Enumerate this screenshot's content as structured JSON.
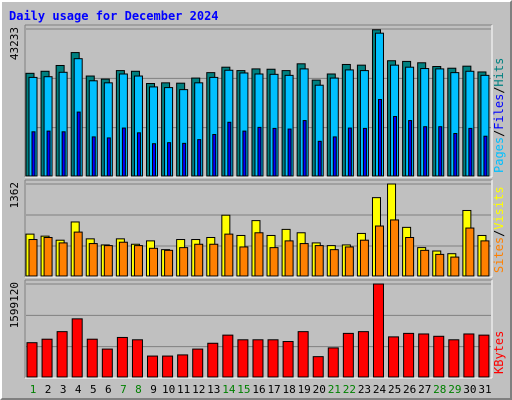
{
  "chart_data": [
    {
      "type": "bar",
      "title": "Daily usage for December 2024",
      "ymax_label": "43233",
      "legend": [
        {
          "name": "Pages",
          "color": "#00c0ff"
        },
        {
          "name": "Files",
          "color": "#0000ff"
        },
        {
          "name": "Hits",
          "color": "#008080"
        }
      ],
      "legend_separator": "/",
      "categories": [
        "1",
        "2",
        "3",
        "4",
        "5",
        "6",
        "7",
        "8",
        "9",
        "10",
        "11",
        "12",
        "13",
        "14",
        "15",
        "16",
        "17",
        "18",
        "19",
        "20",
        "21",
        "22",
        "23",
        "24",
        "25",
        "26",
        "27",
        "28",
        "29",
        "30",
        "31"
      ],
      "weekend_days": [
        1,
        7,
        8,
        14,
        15,
        21,
        22,
        28,
        29
      ],
      "ylim": [
        0,
        43233
      ],
      "series": [
        {
          "name": "Hits",
          "values": [
            30200,
            30800,
            32500,
            36300,
            29400,
            28500,
            31000,
            30800,
            27200,
            27400,
            27300,
            28800,
            30400,
            32000,
            31000,
            31500,
            31400,
            31000,
            33000,
            28200,
            30000,
            32800,
            32600,
            43000,
            33900,
            33700,
            33300,
            32200,
            31700,
            32300,
            30600
          ]
        },
        {
          "name": "Pages",
          "values": [
            29000,
            29200,
            30500,
            34500,
            28000,
            27400,
            30000,
            29400,
            26200,
            26000,
            25400,
            27400,
            29000,
            31100,
            30300,
            30000,
            29900,
            29600,
            31500,
            26700,
            28800,
            31200,
            31000,
            42000,
            32600,
            32000,
            31600,
            31500,
            30400,
            30800,
            29600
          ]
        },
        {
          "name": "Files",
          "values": [
            13000,
            13200,
            13000,
            18800,
            11500,
            11200,
            14100,
            12700,
            9500,
            9800,
            9600,
            10700,
            12200,
            15800,
            13200,
            14300,
            14000,
            13800,
            16300,
            10200,
            11500,
            14100,
            14000,
            22500,
            17500,
            16300,
            14500,
            14500,
            12500,
            14000,
            11700
          ]
        }
      ]
    },
    {
      "type": "bar",
      "ymax_label": "1362",
      "legend": [
        {
          "name": "Sites",
          "color": "#ff8000"
        },
        {
          "name": "Visits",
          "color": "#ffff00"
        }
      ],
      "legend_separator": "/",
      "categories": [
        "1",
        "2",
        "3",
        "4",
        "5",
        "6",
        "7",
        "8",
        "9",
        "10",
        "11",
        "12",
        "13",
        "14",
        "15",
        "16",
        "17",
        "18",
        "19",
        "20",
        "21",
        "22",
        "23",
        "24",
        "25",
        "26",
        "27",
        "28",
        "29",
        "30",
        "31"
      ],
      "ylim": [
        0,
        1362
      ],
      "series": [
        {
          "name": "Visits",
          "values": [
            620,
            590,
            530,
            800,
            550,
            460,
            550,
            470,
            520,
            390,
            540,
            540,
            570,
            900,
            600,
            820,
            600,
            690,
            640,
            490,
            450,
            460,
            630,
            1160,
            1362,
            720,
            420,
            370,
            330,
            970,
            600
          ]
        },
        {
          "name": "Sites",
          "values": [
            540,
            570,
            490,
            650,
            480,
            450,
            500,
            450,
            410,
            380,
            420,
            470,
            470,
            620,
            430,
            640,
            420,
            520,
            480,
            450,
            390,
            430,
            530,
            740,
            830,
            570,
            380,
            320,
            280,
            710,
            520
          ]
        }
      ]
    },
    {
      "type": "bar",
      "ymax_label": "1599120",
      "legend": [
        {
          "name": "KBytes",
          "color": "#ff0000"
        }
      ],
      "categories": [
        "1",
        "2",
        "3",
        "4",
        "5",
        "6",
        "7",
        "8",
        "9",
        "10",
        "11",
        "12",
        "13",
        "14",
        "15",
        "16",
        "17",
        "18",
        "19",
        "20",
        "21",
        "22",
        "23",
        "24",
        "25",
        "26",
        "27",
        "28",
        "29",
        "30",
        "31"
      ],
      "ylim": [
        0,
        1599120
      ],
      "series": [
        {
          "name": "KBytes",
          "values": [
            590000,
            650000,
            780000,
            1000000,
            650000,
            480000,
            680000,
            640000,
            360000,
            360000,
            380000,
            480000,
            580000,
            720000,
            640000,
            640000,
            640000,
            610000,
            780000,
            350000,
            500000,
            750000,
            780000,
            1599120,
            690000,
            750000,
            740000,
            700000,
            640000,
            740000,
            720000
          ]
        }
      ]
    }
  ]
}
